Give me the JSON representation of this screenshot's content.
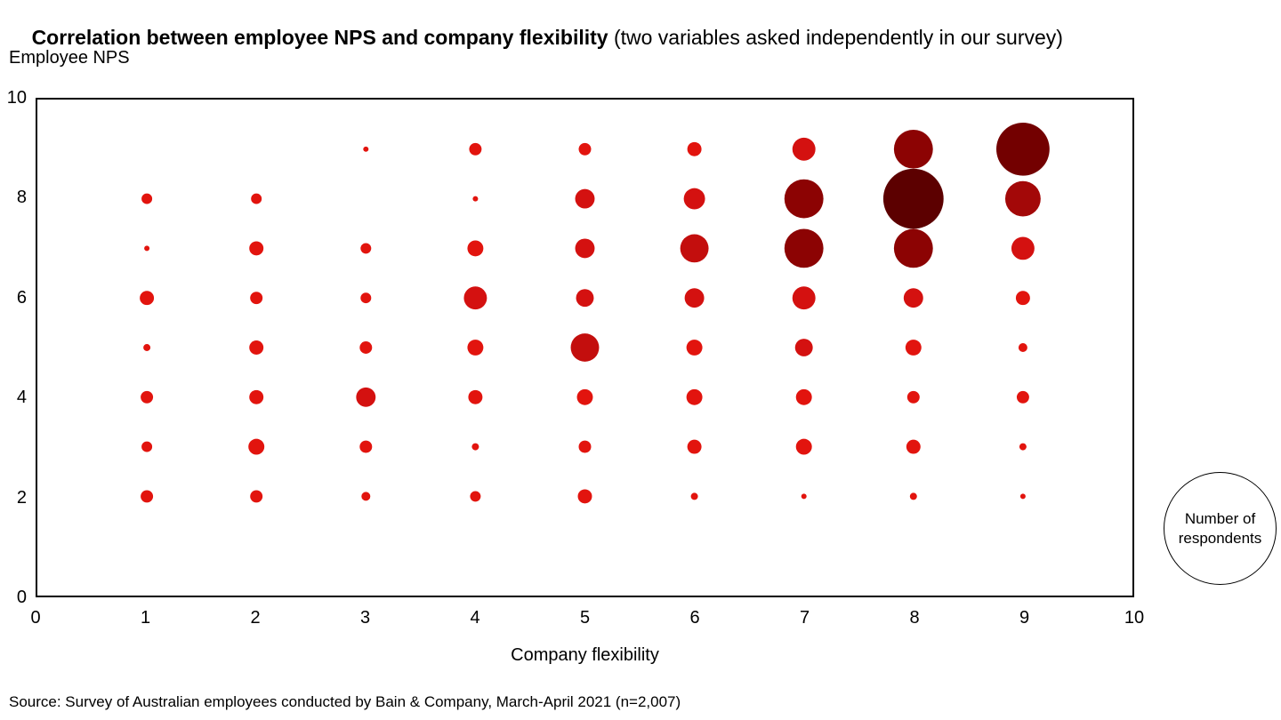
{
  "title": {
    "bold": "Correlation between employee NPS and company flexibility",
    "regular": " (two variables asked independently in our survey)"
  },
  "y_axis_label": "Employee NPS",
  "x_axis_label": "Company flexibility",
  "legend": {
    "line1": "Number of",
    "line2": "respondents"
  },
  "source": "Source: Survey of Australian employees conducted by Bain & Company, March-April 2021 (n=2,007)",
  "chart_data": {
    "type": "scatter",
    "subtype": "bubble",
    "title": "Correlation between employee NPS and company flexibility (two variables asked independently in our survey)",
    "xlabel": "Company flexibility",
    "ylabel": "Employee NPS",
    "xlim": [
      0,
      10
    ],
    "ylim": [
      0,
      10
    ],
    "x_ticks": [
      0,
      1,
      2,
      3,
      4,
      5,
      6,
      7,
      8,
      9,
      10
    ],
    "y_ticks": [
      0,
      2,
      4,
      6,
      8,
      10
    ],
    "legend_label": "Number of respondents",
    "bubble_size_meaning": "Number of respondents",
    "color_scale": [
      {
        "max_r": 9.9,
        "color": "#e2140e"
      },
      {
        "max_r": 13.9,
        "color": "#d41110"
      },
      {
        "max_r": 17.9,
        "color": "#c30e0d"
      },
      {
        "max_r": 20.9,
        "color": "#a30808"
      },
      {
        "max_r": 24.9,
        "color": "#8c0303"
      },
      {
        "max_r": 31,
        "color": "#730000"
      },
      {
        "max_r": 999,
        "color": "#5c0000"
      }
    ],
    "points": [
      {
        "x": 1,
        "y": 8,
        "r": 6
      },
      {
        "x": 1,
        "y": 7,
        "r": 3
      },
      {
        "x": 1,
        "y": 6,
        "r": 8
      },
      {
        "x": 1,
        "y": 5,
        "r": 4
      },
      {
        "x": 1,
        "y": 4,
        "r": 7
      },
      {
        "x": 1,
        "y": 3,
        "r": 6
      },
      {
        "x": 1,
        "y": 2,
        "r": 7
      },
      {
        "x": 2,
        "y": 8,
        "r": 6
      },
      {
        "x": 2,
        "y": 7,
        "r": 8
      },
      {
        "x": 2,
        "y": 6,
        "r": 7
      },
      {
        "x": 2,
        "y": 5,
        "r": 8
      },
      {
        "x": 2,
        "y": 4,
        "r": 8
      },
      {
        "x": 2,
        "y": 3,
        "r": 9
      },
      {
        "x": 2,
        "y": 2,
        "r": 7
      },
      {
        "x": 3,
        "y": 9,
        "r": 3
      },
      {
        "x": 3,
        "y": 7,
        "r": 6
      },
      {
        "x": 3,
        "y": 6,
        "r": 6
      },
      {
        "x": 3,
        "y": 5,
        "r": 7
      },
      {
        "x": 3,
        "y": 4,
        "r": 11
      },
      {
        "x": 3,
        "y": 3,
        "r": 7
      },
      {
        "x": 3,
        "y": 2,
        "r": 5
      },
      {
        "x": 4,
        "y": 9,
        "r": 7
      },
      {
        "x": 4,
        "y": 8,
        "r": 3
      },
      {
        "x": 4,
        "y": 7,
        "r": 9
      },
      {
        "x": 4,
        "y": 6,
        "r": 13
      },
      {
        "x": 4,
        "y": 5,
        "r": 9
      },
      {
        "x": 4,
        "y": 4,
        "r": 8
      },
      {
        "x": 4,
        "y": 3,
        "r": 4
      },
      {
        "x": 4,
        "y": 2,
        "r": 6
      },
      {
        "x": 5,
        "y": 9,
        "r": 7
      },
      {
        "x": 5,
        "y": 8,
        "r": 11
      },
      {
        "x": 5,
        "y": 7,
        "r": 11
      },
      {
        "x": 5,
        "y": 6,
        "r": 10
      },
      {
        "x": 5,
        "y": 5,
        "r": 16
      },
      {
        "x": 5,
        "y": 4,
        "r": 9
      },
      {
        "x": 5,
        "y": 3,
        "r": 7
      },
      {
        "x": 5,
        "y": 2,
        "r": 8
      },
      {
        "x": 6,
        "y": 9,
        "r": 8
      },
      {
        "x": 6,
        "y": 8,
        "r": 12
      },
      {
        "x": 6,
        "y": 7,
        "r": 16
      },
      {
        "x": 6,
        "y": 6,
        "r": 11
      },
      {
        "x": 6,
        "y": 5,
        "r": 9
      },
      {
        "x": 6,
        "y": 4,
        "r": 9
      },
      {
        "x": 6,
        "y": 3,
        "r": 8
      },
      {
        "x": 6,
        "y": 2,
        "r": 4
      },
      {
        "x": 7,
        "y": 9,
        "r": 13
      },
      {
        "x": 7,
        "y": 8,
        "r": 22
      },
      {
        "x": 7,
        "y": 7,
        "r": 22
      },
      {
        "x": 7,
        "y": 6,
        "r": 13
      },
      {
        "x": 7,
        "y": 5,
        "r": 10
      },
      {
        "x": 7,
        "y": 4,
        "r": 9
      },
      {
        "x": 7,
        "y": 3,
        "r": 9
      },
      {
        "x": 7,
        "y": 2,
        "r": 3
      },
      {
        "x": 8,
        "y": 9,
        "r": 22
      },
      {
        "x": 8,
        "y": 8,
        "r": 34
      },
      {
        "x": 8,
        "y": 7,
        "r": 22
      },
      {
        "x": 8,
        "y": 6,
        "r": 11
      },
      {
        "x": 8,
        "y": 5,
        "r": 9
      },
      {
        "x": 8,
        "y": 4,
        "r": 7
      },
      {
        "x": 8,
        "y": 3,
        "r": 8
      },
      {
        "x": 8,
        "y": 2,
        "r": 4
      },
      {
        "x": 9,
        "y": 9,
        "r": 30
      },
      {
        "x": 9,
        "y": 8,
        "r": 20
      },
      {
        "x": 9,
        "y": 7,
        "r": 13
      },
      {
        "x": 9,
        "y": 6,
        "r": 8
      },
      {
        "x": 9,
        "y": 5,
        "r": 5
      },
      {
        "x": 9,
        "y": 4,
        "r": 7
      },
      {
        "x": 9,
        "y": 3,
        "r": 4
      },
      {
        "x": 9,
        "y": 2,
        "r": 3
      }
    ]
  }
}
